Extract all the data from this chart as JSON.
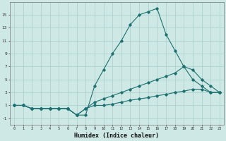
{
  "xlabel": "Humidex (Indice chaleur)",
  "background_color": "#cde8e5",
  "grid_color": "#aacfcc",
  "line_color": "#1e7070",
  "x_values": [
    0,
    1,
    2,
    3,
    4,
    5,
    6,
    7,
    8,
    9,
    10,
    11,
    12,
    13,
    14,
    15,
    16,
    17,
    18,
    19,
    20,
    21,
    22,
    23
  ],
  "series1": [
    1,
    1,
    0.5,
    0.5,
    0.5,
    0.5,
    0.5,
    -0.5,
    -0.5,
    4,
    6.5,
    9,
    11,
    13.5,
    15,
    15.5,
    16,
    12,
    9.5,
    7,
    5,
    4,
    3,
    3
  ],
  "series2": [
    1,
    1,
    0.5,
    0.5,
    0.5,
    0.5,
    0.5,
    -0.5,
    0.5,
    1.5,
    2,
    2.5,
    3,
    3.5,
    4,
    4.5,
    5,
    5.5,
    6,
    7,
    6.5,
    5,
    4,
    3
  ],
  "series3": [
    1,
    1,
    0.5,
    0.5,
    0.5,
    0.5,
    0.5,
    -0.5,
    0.5,
    1,
    1,
    1.2,
    1.5,
    1.8,
    2,
    2.2,
    2.5,
    2.7,
    3,
    3.2,
    3.5,
    3.5,
    3,
    3
  ],
  "yticks": [
    -1,
    1,
    3,
    5,
    7,
    9,
    11,
    13,
    15
  ],
  "ylim": [
    -2,
    17
  ],
  "xlim": [
    -0.5,
    23.5
  ]
}
